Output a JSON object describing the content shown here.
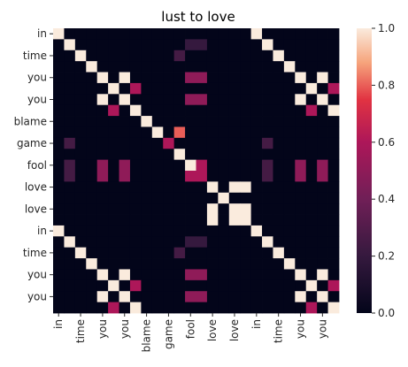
{
  "chart_data": {
    "type": "heatmap",
    "title": "lust to love",
    "xlabel": "",
    "ylabel": "",
    "row_labels": [
      "in",
      "",
      "time",
      "",
      "you",
      "",
      "you",
      "",
      "blame",
      "",
      "game",
      "",
      "fool",
      "",
      "love",
      "",
      "love",
      "",
      "in",
      "",
      "time",
      "",
      "you",
      "",
      "you",
      ""
    ],
    "col_labels": [
      "in",
      "",
      "time",
      "",
      "you",
      "",
      "you",
      "",
      "blame",
      "",
      "game",
      "",
      "fool",
      "",
      "love",
      "",
      "love",
      "",
      "in",
      "",
      "time",
      "",
      "you",
      "",
      "you",
      ""
    ],
    "colorbar": {
      "min": 0.0,
      "max": 1.0,
      "ticks": [
        "0.0",
        "0.2",
        "0.4",
        "0.6",
        "0.8",
        "1.0"
      ]
    },
    "colormap": "rocket",
    "grid": false,
    "legend": "colorbar-right",
    "values": [
      [
        1,
        0,
        0,
        0,
        0,
        0,
        0,
        0,
        0,
        0,
        0,
        0,
        0,
        0,
        0,
        0,
        0,
        0,
        1,
        0,
        0,
        0,
        0,
        0,
        0,
        0
      ],
      [
        0,
        1,
        0,
        0,
        0,
        0,
        0,
        0,
        0,
        0,
        0,
        0,
        0.2,
        0.2,
        0,
        0,
        0,
        0,
        0,
        1,
        0,
        0,
        0,
        0,
        0,
        0
      ],
      [
        0,
        0,
        1,
        0,
        0,
        0,
        0,
        0,
        0,
        0,
        0,
        0.25,
        0,
        0,
        0,
        0,
        0,
        0,
        0,
        0,
        1,
        0,
        0,
        0,
        0,
        0
      ],
      [
        0,
        0,
        0,
        1,
        0,
        0,
        0,
        0,
        0,
        0,
        0,
        0,
        0,
        0,
        0,
        0,
        0,
        0,
        0,
        0,
        0,
        1,
        0,
        0,
        0,
        0
      ],
      [
        0,
        0,
        0,
        0,
        1,
        0,
        1,
        0,
        0,
        0,
        0,
        0,
        0.5,
        0.5,
        0,
        0,
        0,
        0,
        0,
        0,
        0,
        0,
        1,
        0,
        1,
        0
      ],
      [
        0,
        0,
        0,
        0,
        0,
        1,
        0,
        0.6,
        0,
        0,
        0,
        0,
        0,
        0,
        0,
        0,
        0,
        0,
        0,
        0,
        0,
        0,
        0,
        1,
        0,
        0.6
      ],
      [
        0,
        0,
        0,
        0,
        1,
        0,
        1,
        0,
        0,
        0,
        0,
        0,
        0.5,
        0.5,
        0,
        0,
        0,
        0,
        0,
        0,
        0,
        0,
        1,
        0,
        1,
        0
      ],
      [
        0,
        0,
        0,
        0,
        0,
        0.6,
        0,
        1,
        0,
        0,
        0,
        0,
        0,
        0,
        0,
        0,
        0,
        0,
        0,
        0,
        0,
        0,
        0,
        0.6,
        0,
        1
      ],
      [
        0,
        0,
        0,
        0,
        0,
        0,
        0,
        0,
        1,
        0,
        0,
        0,
        0,
        0,
        0,
        0,
        0,
        0,
        0,
        0,
        0,
        0,
        0,
        0,
        0,
        0
      ],
      [
        0,
        0,
        0,
        0,
        0,
        0,
        0,
        0,
        0,
        1,
        0,
        0.8,
        0,
        0,
        0,
        0,
        0,
        0,
        0,
        0,
        0,
        0,
        0,
        0,
        0,
        0
      ],
      [
        0,
        0.25,
        0,
        0,
        0,
        0,
        0,
        0,
        0,
        0,
        0.6,
        0,
        0,
        0,
        0,
        0,
        0,
        0,
        0,
        0.25,
        0,
        0,
        0,
        0,
        0,
        0
      ],
      [
        0,
        0,
        0,
        0,
        0,
        0,
        0,
        0,
        0,
        0,
        0,
        1,
        0,
        0,
        0,
        0,
        0,
        0,
        0,
        0,
        0,
        0,
        0,
        0,
        0,
        0
      ],
      [
        0,
        0.25,
        0,
        0,
        0.5,
        0,
        0.5,
        0,
        0,
        0,
        0,
        0,
        1,
        0.6,
        0,
        0,
        0,
        0,
        0,
        0.25,
        0,
        0,
        0.5,
        0,
        0.5,
        0
      ],
      [
        0,
        0.25,
        0,
        0,
        0.5,
        0,
        0.5,
        0,
        0,
        0,
        0,
        0,
        0.6,
        0.6,
        0,
        0,
        0,
        0,
        0,
        0.25,
        0,
        0,
        0.5,
        0,
        0.5,
        0
      ],
      [
        0,
        0,
        0,
        0,
        0,
        0,
        0,
        0,
        0,
        0,
        0,
        0,
        0,
        0,
        1,
        0,
        1,
        1,
        0,
        0,
        0,
        0,
        0,
        0,
        0,
        0
      ],
      [
        0,
        0,
        0,
        0,
        0,
        0,
        0,
        0,
        0,
        0,
        0,
        0,
        0,
        0,
        0,
        1,
        0,
        0,
        0,
        0,
        0,
        0,
        0,
        0,
        0,
        0
      ],
      [
        0,
        0,
        0,
        0,
        0,
        0,
        0,
        0,
        0,
        0,
        0,
        0,
        0,
        0,
        1,
        0,
        1,
        1,
        0,
        0,
        0,
        0,
        0,
        0,
        0,
        0
      ],
      [
        0,
        0,
        0,
        0,
        0,
        0,
        0,
        0,
        0,
        0,
        0,
        0,
        0,
        0,
        1,
        0,
        1,
        1,
        0,
        0,
        0,
        0,
        0,
        0,
        0,
        0
      ],
      [
        1,
        0,
        0,
        0,
        0,
        0,
        0,
        0,
        0,
        0,
        0,
        0,
        0,
        0,
        0,
        0,
        0,
        0,
        1,
        0,
        0,
        0,
        0,
        0,
        0,
        0
      ],
      [
        0,
        1,
        0,
        0,
        0,
        0,
        0,
        0,
        0,
        0,
        0,
        0,
        0.2,
        0.2,
        0,
        0,
        0,
        0,
        0,
        1,
        0,
        0,
        0,
        0,
        0,
        0
      ],
      [
        0,
        0,
        1,
        0,
        0,
        0,
        0,
        0,
        0,
        0,
        0,
        0.25,
        0,
        0,
        0,
        0,
        0,
        0,
        0,
        0,
        1,
        0,
        0,
        0,
        0,
        0
      ],
      [
        0,
        0,
        0,
        1,
        0,
        0,
        0,
        0,
        0,
        0,
        0,
        0,
        0,
        0,
        0,
        0,
        0,
        0,
        0,
        0,
        0,
        1,
        0,
        0,
        0,
        0
      ],
      [
        0,
        0,
        0,
        0,
        1,
        0,
        1,
        0,
        0,
        0,
        0,
        0,
        0.5,
        0.5,
        0,
        0,
        0,
        0,
        0,
        0,
        0,
        0,
        1,
        0,
        1,
        0
      ],
      [
        0,
        0,
        0,
        0,
        0,
        1,
        0,
        0.6,
        0,
        0,
        0,
        0,
        0,
        0,
        0,
        0,
        0,
        0,
        0,
        0,
        0,
        0,
        0,
        1,
        0,
        0.6
      ],
      [
        0,
        0,
        0,
        0,
        1,
        0,
        1,
        0,
        0,
        0,
        0,
        0,
        0.5,
        0.5,
        0,
        0,
        0,
        0,
        0,
        0,
        0,
        0,
        1,
        0,
        1,
        0
      ],
      [
        0,
        0,
        0,
        0,
        0,
        0.6,
        0,
        1,
        0,
        0,
        0,
        0,
        0,
        0,
        0,
        0,
        0,
        0,
        0,
        0,
        0,
        0,
        0,
        0.6,
        0,
        1
      ]
    ]
  }
}
